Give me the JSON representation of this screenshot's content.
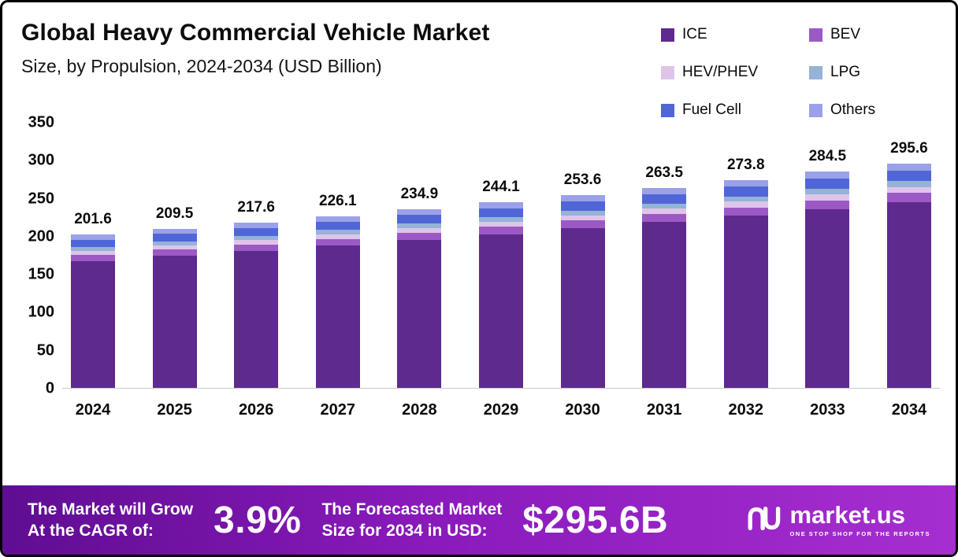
{
  "header": {
    "title": "Global Heavy Commercial Vehicle Market",
    "subtitle": "Size, by Propulsion, 2024-2034 (USD Billion)"
  },
  "chart_data": {
    "type": "bar",
    "stacked": true,
    "title": "Global Heavy Commercial Vehicle Market Size, by Propulsion, 2024-2034 (USD Billion)",
    "categories": [
      "2024",
      "2025",
      "2026",
      "2027",
      "2028",
      "2029",
      "2030",
      "2031",
      "2032",
      "2033",
      "2034"
    ],
    "totals": [
      201.6,
      209.5,
      217.6,
      226.1,
      234.9,
      244.1,
      253.6,
      263.5,
      273.8,
      284.5,
      295.6
    ],
    "series": [
      {
        "name": "ICE",
        "color": "#5e2a8d",
        "values": [
          166.9,
          173.5,
          180.2,
          187.2,
          194.5,
          202.1,
          210.0,
          218.2,
          226.7,
          235.6,
          244.8
        ]
      },
      {
        "name": "BEV",
        "color": "#9c59c5",
        "values": [
          8.1,
          8.4,
          8.7,
          9.0,
          9.4,
          9.8,
          10.1,
          10.5,
          11.0,
          11.4,
          11.8
        ]
      },
      {
        "name": "HEV/PHEV",
        "color": "#dfc4ea",
        "values": [
          5.4,
          5.7,
          5.9,
          6.1,
          6.3,
          6.6,
          6.8,
          7.1,
          7.4,
          7.7,
          8.0
        ]
      },
      {
        "name": "LPG",
        "color": "#94b3d6",
        "values": [
          5.0,
          5.2,
          5.4,
          5.7,
          5.9,
          6.1,
          6.3,
          6.6,
          6.8,
          7.1,
          7.4
        ]
      },
      {
        "name": "Fuel Cell",
        "color": "#5166d6",
        "values": [
          9.7,
          10.1,
          10.4,
          10.9,
          11.3,
          11.7,
          12.2,
          12.6,
          13.1,
          13.7,
          14.2
        ]
      },
      {
        "name": "Others",
        "color": "#9aa1e8",
        "values": [
          6.5,
          6.6,
          7.0,
          7.2,
          7.5,
          7.8,
          8.2,
          8.5,
          8.8,
          9.0,
          9.4
        ]
      }
    ],
    "xlabel": "",
    "ylabel": "",
    "ylim": [
      0,
      350
    ],
    "yticks": [
      0,
      50,
      100,
      150,
      200,
      250,
      300,
      350
    ],
    "grid": false,
    "legend_position": "top-right"
  },
  "banner": {
    "grow_line1": "The Market will Grow",
    "grow_line2": "At the CAGR of:",
    "cagr": "3.9%",
    "forecast_line1": "The Forecasted Market",
    "forecast_line2": "Size for 2034 in USD:",
    "forecast_value": "$295.6B",
    "logo_name": "market.us",
    "logo_tagline": "ONE STOP SHOP FOR THE REPORTS"
  }
}
